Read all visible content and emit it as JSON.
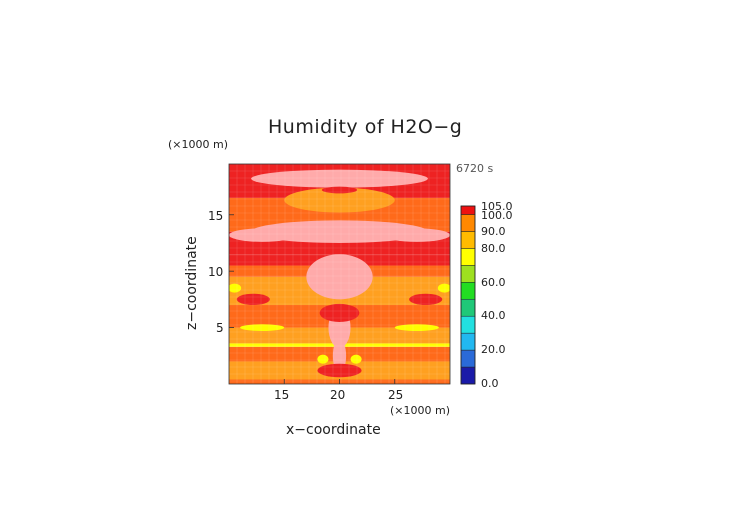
{
  "chart_data": {
    "type": "heatmap",
    "title": "Humidity of H2O−g",
    "xlabel": "x−coordinate",
    "ylabel": "z−coordinate",
    "x_unit": "(×1000 m)",
    "y_unit": "(×1000 m)",
    "time_label": "6720 s",
    "xlim": [
      10,
      30
    ],
    "ylim": [
      0,
      19.5
    ],
    "x_ticks": [
      "15",
      "20",
      "25"
    ],
    "y_ticks": [
      "5",
      "10",
      "15"
    ],
    "colorbar": {
      "levels": [
        0,
        10,
        20,
        30,
        40,
        50,
        60,
        70,
        80,
        90,
        100,
        105
      ],
      "tick_labels": [
        "0.0",
        "20.0",
        "40.0",
        "60.0",
        "80.0",
        "90.0",
        "100.0",
        "105.0"
      ],
      "colors": [
        "#1a1aa8",
        "#2a6ad8",
        "#22b8f0",
        "#22e0e0",
        "#20c878",
        "#22dd22",
        "#9ee020",
        "#ffff00",
        "#ffbb00",
        "#ff8800",
        "#ee1111",
        "#ffffff"
      ]
    },
    "field_bands": [
      {
        "zmin": 0.0,
        "zmax": 0.4,
        "level": 90
      },
      {
        "zmin": 0.4,
        "zmax": 2.0,
        "level": 80
      },
      {
        "zmin": 2.0,
        "zmax": 3.3,
        "level": 90
      },
      {
        "zmin": 3.3,
        "zmax": 3.6,
        "level": 70
      },
      {
        "zmin": 3.6,
        "zmax": 5.0,
        "level": 80
      },
      {
        "zmin": 5.0,
        "zmax": 7.0,
        "level": 90
      },
      {
        "zmin": 7.0,
        "zmax": 9.5,
        "level": 80
      },
      {
        "zmin": 9.5,
        "zmax": 10.5,
        "level": 90
      },
      {
        "zmin": 10.5,
        "zmax": 11.5,
        "level": 100
      },
      {
        "zmin": 11.5,
        "zmax": 13.5,
        "level": 100
      },
      {
        "zmin": 13.5,
        "zmax": 16.5,
        "level": 90
      },
      {
        "zmin": 16.5,
        "zmax": 19.5,
        "level": 100
      }
    ],
    "field_blobs": [
      {
        "x": 20,
        "z": 16.3,
        "rx": 5,
        "rz": 1.1,
        "level": 80
      },
      {
        "x": 20,
        "z": 13.5,
        "rx": 8,
        "rz": 1.0,
        "level": 105
      },
      {
        "x": 13,
        "z": 13.2,
        "rx": 3,
        "rz": 0.6,
        "level": 105
      },
      {
        "x": 27,
        "z": 13.2,
        "rx": 3,
        "rz": 0.6,
        "level": 105
      },
      {
        "x": 20,
        "z": 18.2,
        "rx": 8,
        "rz": 0.8,
        "level": 105
      },
      {
        "x": 20,
        "z": 17.2,
        "rx": 1.6,
        "rz": 0.3,
        "level": 100
      },
      {
        "x": 20,
        "z": 9.5,
        "rx": 3,
        "rz": 2.0,
        "level": 105
      },
      {
        "x": 20,
        "z": 5.0,
        "rx": 1.0,
        "rz": 1.8,
        "level": 105
      },
      {
        "x": 20,
        "z": 2.5,
        "rx": 0.6,
        "rz": 1.5,
        "level": 105
      },
      {
        "x": 12.2,
        "z": 7.5,
        "rx": 1.5,
        "rz": 0.5,
        "level": 100
      },
      {
        "x": 27.8,
        "z": 7.5,
        "rx": 1.5,
        "rz": 0.5,
        "level": 100
      },
      {
        "x": 13.0,
        "z": 5.0,
        "rx": 2.0,
        "rz": 0.3,
        "level": 70
      },
      {
        "x": 27.0,
        "z": 5.0,
        "rx": 2.0,
        "rz": 0.3,
        "level": 70
      },
      {
        "x": 10.5,
        "z": 8.5,
        "rx": 0.6,
        "rz": 0.4,
        "level": 70
      },
      {
        "x": 29.5,
        "z": 8.5,
        "rx": 0.6,
        "rz": 0.4,
        "level": 70
      },
      {
        "x": 18.5,
        "z": 2.2,
        "rx": 0.5,
        "rz": 0.4,
        "level": 70
      },
      {
        "x": 21.5,
        "z": 2.2,
        "rx": 0.5,
        "rz": 0.4,
        "level": 70
      },
      {
        "x": 20,
        "z": 6.3,
        "rx": 1.8,
        "rz": 0.8,
        "level": 100
      },
      {
        "x": 20,
        "z": 1.2,
        "rx": 2.0,
        "rz": 0.6,
        "level": 100
      }
    ]
  }
}
